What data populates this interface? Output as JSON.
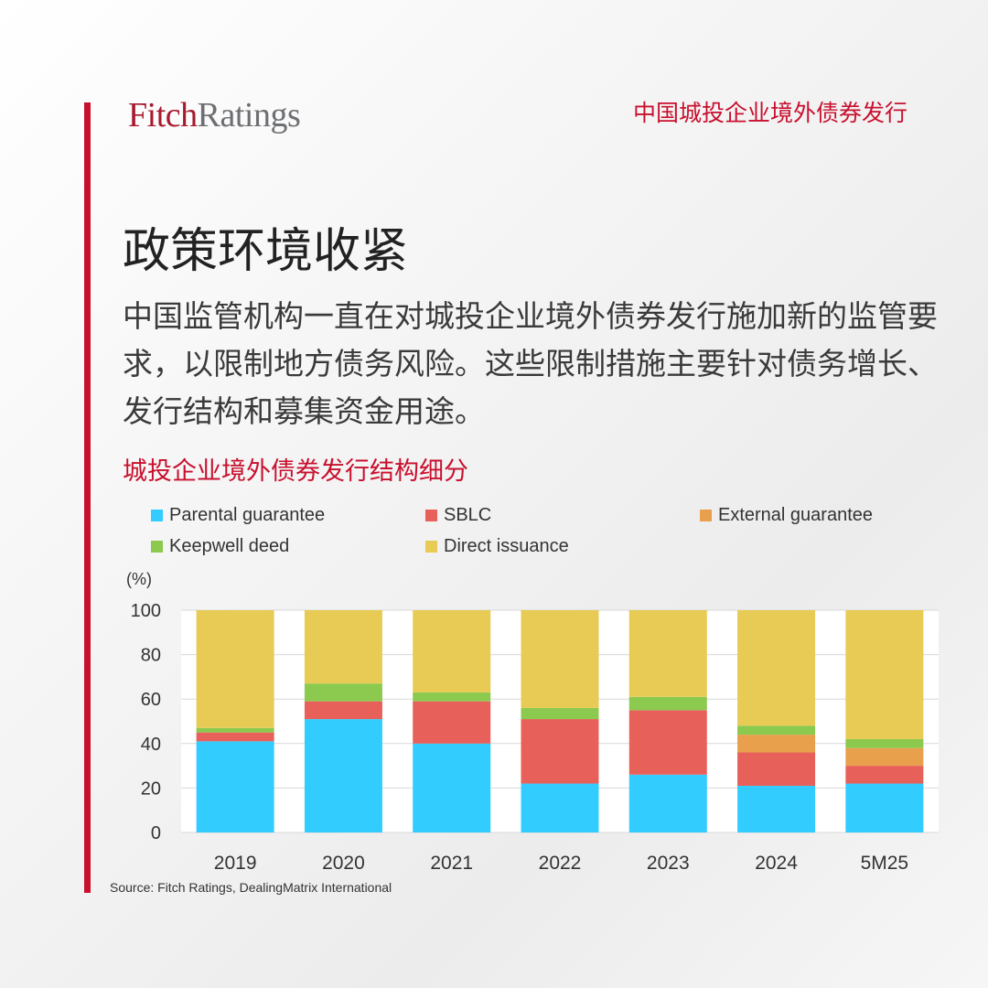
{
  "header": {
    "logo_part1": "Fitch",
    "logo_part2": "Ratings",
    "tagline": "中国城投企业境外债券发行"
  },
  "title": "政策环境收紧",
  "body": "中国监管机构一直在对城投企业境外债券发行施加新的监管要求，以限制地方债务风险。这些限制措施主要针对债务增长、发行结构和募集资金用途。",
  "colors": {
    "accent": "#c8102e"
  },
  "chart_data": {
    "type": "bar",
    "stacked": true,
    "title": "城投企业境外债券发行结构细分",
    "ylabel": "(%)",
    "ylim": [
      0,
      100
    ],
    "yticks": [
      0,
      20,
      40,
      60,
      80,
      100
    ],
    "grid": true,
    "legend_position": "top",
    "categories": [
      "2019",
      "2020",
      "2021",
      "2022",
      "2023",
      "2024",
      "5M25"
    ],
    "series": [
      {
        "name": "Parental guarantee",
        "color": "#33ccff",
        "values": [
          41,
          51,
          40,
          22,
          26,
          21,
          22
        ]
      },
      {
        "name": "SBLC",
        "color": "#e8605a",
        "values": [
          4,
          8,
          19,
          29,
          29,
          15,
          8
        ]
      },
      {
        "name": "External guarantee",
        "color": "#e8a04c",
        "values": [
          0,
          0,
          0,
          0,
          0,
          8,
          8
        ]
      },
      {
        "name": "Keepwell deed",
        "color": "#8cc94f",
        "values": [
          2,
          8,
          4,
          5,
          6,
          4,
          4
        ]
      },
      {
        "name": "Direct issuance",
        "color": "#e8cb55",
        "values": [
          53,
          33,
          37,
          44,
          39,
          52,
          58
        ]
      }
    ],
    "source": "Source: Fitch Ratings, DealingMatrix International"
  }
}
